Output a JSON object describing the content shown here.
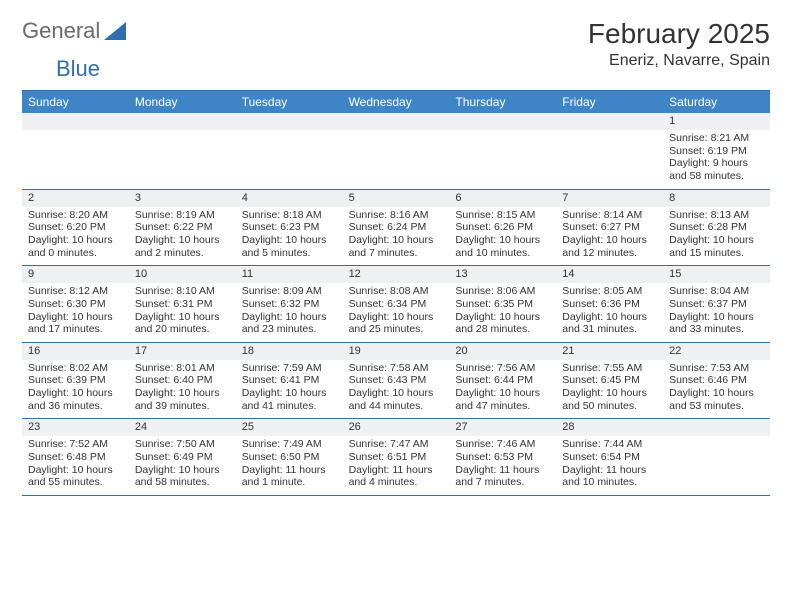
{
  "brand": {
    "text1": "General",
    "text2": "Blue",
    "color_gray": "#6a6a6a",
    "color_blue": "#2f6fb0",
    "triangle_color": "#2f6fb0"
  },
  "title": "February 2025",
  "location": "Eneriz, Navarre, Spain",
  "colors": {
    "header_bg": "#3d85c6",
    "rule": "#2f6fb0",
    "daynum_bg": "#eef0f1",
    "text": "#333333",
    "bg": "#ffffff"
  },
  "day_names": [
    "Sunday",
    "Monday",
    "Tuesday",
    "Wednesday",
    "Thursday",
    "Friday",
    "Saturday"
  ],
  "weeks": [
    [
      null,
      null,
      null,
      null,
      null,
      null,
      {
        "n": "1",
        "sr": "Sunrise: 8:21 AM",
        "ss": "Sunset: 6:19 PM",
        "dl1": "Daylight: 9 hours",
        "dl2": "and 58 minutes."
      }
    ],
    [
      {
        "n": "2",
        "sr": "Sunrise: 8:20 AM",
        "ss": "Sunset: 6:20 PM",
        "dl1": "Daylight: 10 hours",
        "dl2": "and 0 minutes."
      },
      {
        "n": "3",
        "sr": "Sunrise: 8:19 AM",
        "ss": "Sunset: 6:22 PM",
        "dl1": "Daylight: 10 hours",
        "dl2": "and 2 minutes."
      },
      {
        "n": "4",
        "sr": "Sunrise: 8:18 AM",
        "ss": "Sunset: 6:23 PM",
        "dl1": "Daylight: 10 hours",
        "dl2": "and 5 minutes."
      },
      {
        "n": "5",
        "sr": "Sunrise: 8:16 AM",
        "ss": "Sunset: 6:24 PM",
        "dl1": "Daylight: 10 hours",
        "dl2": "and 7 minutes."
      },
      {
        "n": "6",
        "sr": "Sunrise: 8:15 AM",
        "ss": "Sunset: 6:26 PM",
        "dl1": "Daylight: 10 hours",
        "dl2": "and 10 minutes."
      },
      {
        "n": "7",
        "sr": "Sunrise: 8:14 AM",
        "ss": "Sunset: 6:27 PM",
        "dl1": "Daylight: 10 hours",
        "dl2": "and 12 minutes."
      },
      {
        "n": "8",
        "sr": "Sunrise: 8:13 AM",
        "ss": "Sunset: 6:28 PM",
        "dl1": "Daylight: 10 hours",
        "dl2": "and 15 minutes."
      }
    ],
    [
      {
        "n": "9",
        "sr": "Sunrise: 8:12 AM",
        "ss": "Sunset: 6:30 PM",
        "dl1": "Daylight: 10 hours",
        "dl2": "and 17 minutes."
      },
      {
        "n": "10",
        "sr": "Sunrise: 8:10 AM",
        "ss": "Sunset: 6:31 PM",
        "dl1": "Daylight: 10 hours",
        "dl2": "and 20 minutes."
      },
      {
        "n": "11",
        "sr": "Sunrise: 8:09 AM",
        "ss": "Sunset: 6:32 PM",
        "dl1": "Daylight: 10 hours",
        "dl2": "and 23 minutes."
      },
      {
        "n": "12",
        "sr": "Sunrise: 8:08 AM",
        "ss": "Sunset: 6:34 PM",
        "dl1": "Daylight: 10 hours",
        "dl2": "and 25 minutes."
      },
      {
        "n": "13",
        "sr": "Sunrise: 8:06 AM",
        "ss": "Sunset: 6:35 PM",
        "dl1": "Daylight: 10 hours",
        "dl2": "and 28 minutes."
      },
      {
        "n": "14",
        "sr": "Sunrise: 8:05 AM",
        "ss": "Sunset: 6:36 PM",
        "dl1": "Daylight: 10 hours",
        "dl2": "and 31 minutes."
      },
      {
        "n": "15",
        "sr": "Sunrise: 8:04 AM",
        "ss": "Sunset: 6:37 PM",
        "dl1": "Daylight: 10 hours",
        "dl2": "and 33 minutes."
      }
    ],
    [
      {
        "n": "16",
        "sr": "Sunrise: 8:02 AM",
        "ss": "Sunset: 6:39 PM",
        "dl1": "Daylight: 10 hours",
        "dl2": "and 36 minutes."
      },
      {
        "n": "17",
        "sr": "Sunrise: 8:01 AM",
        "ss": "Sunset: 6:40 PM",
        "dl1": "Daylight: 10 hours",
        "dl2": "and 39 minutes."
      },
      {
        "n": "18",
        "sr": "Sunrise: 7:59 AM",
        "ss": "Sunset: 6:41 PM",
        "dl1": "Daylight: 10 hours",
        "dl2": "and 41 minutes."
      },
      {
        "n": "19",
        "sr": "Sunrise: 7:58 AM",
        "ss": "Sunset: 6:43 PM",
        "dl1": "Daylight: 10 hours",
        "dl2": "and 44 minutes."
      },
      {
        "n": "20",
        "sr": "Sunrise: 7:56 AM",
        "ss": "Sunset: 6:44 PM",
        "dl1": "Daylight: 10 hours",
        "dl2": "and 47 minutes."
      },
      {
        "n": "21",
        "sr": "Sunrise: 7:55 AM",
        "ss": "Sunset: 6:45 PM",
        "dl1": "Daylight: 10 hours",
        "dl2": "and 50 minutes."
      },
      {
        "n": "22",
        "sr": "Sunrise: 7:53 AM",
        "ss": "Sunset: 6:46 PM",
        "dl1": "Daylight: 10 hours",
        "dl2": "and 53 minutes."
      }
    ],
    [
      {
        "n": "23",
        "sr": "Sunrise: 7:52 AM",
        "ss": "Sunset: 6:48 PM",
        "dl1": "Daylight: 10 hours",
        "dl2": "and 55 minutes."
      },
      {
        "n": "24",
        "sr": "Sunrise: 7:50 AM",
        "ss": "Sunset: 6:49 PM",
        "dl1": "Daylight: 10 hours",
        "dl2": "and 58 minutes."
      },
      {
        "n": "25",
        "sr": "Sunrise: 7:49 AM",
        "ss": "Sunset: 6:50 PM",
        "dl1": "Daylight: 11 hours",
        "dl2": "and 1 minute."
      },
      {
        "n": "26",
        "sr": "Sunrise: 7:47 AM",
        "ss": "Sunset: 6:51 PM",
        "dl1": "Daylight: 11 hours",
        "dl2": "and 4 minutes."
      },
      {
        "n": "27",
        "sr": "Sunrise: 7:46 AM",
        "ss": "Sunset: 6:53 PM",
        "dl1": "Daylight: 11 hours",
        "dl2": "and 7 minutes."
      },
      {
        "n": "28",
        "sr": "Sunrise: 7:44 AM",
        "ss": "Sunset: 6:54 PM",
        "dl1": "Daylight: 11 hours",
        "dl2": "and 10 minutes."
      },
      null
    ]
  ]
}
